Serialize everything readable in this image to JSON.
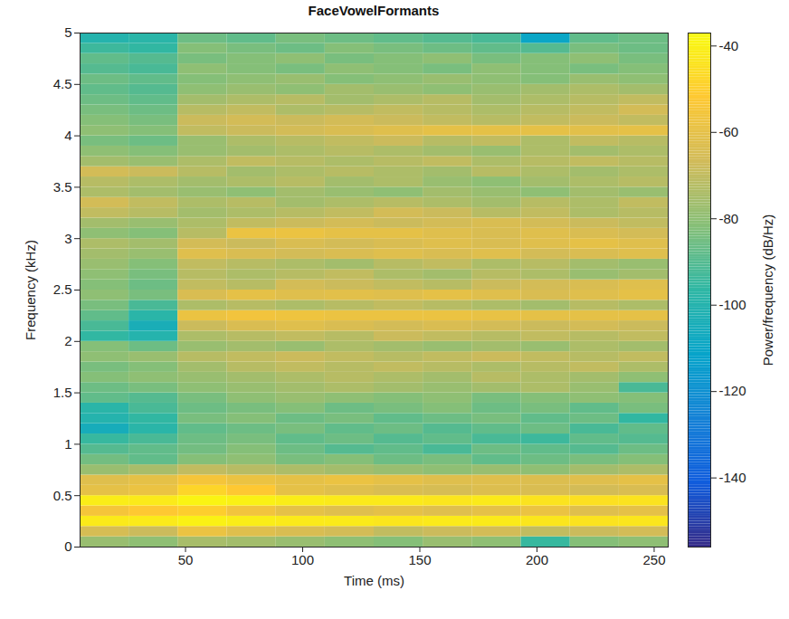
{
  "chart_data": {
    "type": "heatmap",
    "title": "FaceVowelFormants",
    "x_label": "Time (ms)",
    "y_label": "Frequency (kHz)",
    "xlim": [
      5,
      256
    ],
    "xticks": [
      50,
      100,
      150,
      200,
      250
    ],
    "ylim": [
      0,
      5
    ],
    "yticks": [
      0,
      0.5,
      1,
      1.5,
      2,
      2.5,
      3,
      3.5,
      4,
      4.5,
      5
    ],
    "x_edges": [
      5,
      25.9,
      46.8,
      67.8,
      88.7,
      109.6,
      130.5,
      151.4,
      172.3,
      193.3,
      214.2,
      235.1,
      256
    ],
    "y_edges": [
      0,
      0.1,
      0.2,
      0.3,
      0.4,
      0.5,
      0.6,
      0.7,
      0.8,
      0.9,
      1,
      1.1,
      1.2,
      1.3,
      1.4,
      1.5,
      1.6,
      1.7,
      1.8,
      1.9,
      2,
      2.1,
      2.2,
      2.3,
      2.4,
      2.5,
      2.6,
      2.7,
      2.8,
      2.9,
      3,
      3.1,
      3.2,
      3.3,
      3.4,
      3.5,
      3.6,
      3.7,
      3.8,
      3.9,
      4,
      4.1,
      4.2,
      4.3,
      4.4,
      4.5,
      4.6,
      4.7,
      4.8,
      4.9,
      5
    ],
    "z": [
      [
        -78,
        -80,
        -75,
        -76,
        -78,
        -80,
        -82,
        -78,
        -80,
        -95,
        -82,
        -80
      ],
      [
        -65,
        -68,
        -58,
        -62,
        -64,
        -66,
        -70,
        -68,
        -66,
        -70,
        -68,
        -66
      ],
      [
        -42,
        -42,
        -40,
        -41,
        -42,
        -42,
        -43,
        -42,
        -42,
        -43,
        -44,
        -43
      ],
      [
        -55,
        -52,
        -50,
        -56,
        -60,
        -62,
        -60,
        -62,
        -60,
        -58,
        -62,
        -60
      ],
      [
        -41,
        -42,
        -39,
        -40,
        -41,
        -42,
        -42,
        -43,
        -42,
        -44,
        -45,
        -44
      ],
      [
        -60,
        -58,
        -48,
        -52,
        -60,
        -62,
        -64,
        -65,
        -63,
        -64,
        -66,
        -64
      ],
      [
        -62,
        -60,
        -55,
        -58,
        -60,
        -58,
        -60,
        -62,
        -62,
        -63,
        -62,
        -60
      ],
      [
        -78,
        -75,
        -70,
        -72,
        -74,
        -76,
        -78,
        -80,
        -78,
        -80,
        -76,
        -74
      ],
      [
        -85,
        -88,
        -82,
        -80,
        -84,
        -82,
        -86,
        -84,
        -88,
        -86,
        -84,
        -82
      ],
      [
        -90,
        -88,
        -85,
        -82,
        -86,
        -90,
        -88,
        -92,
        -86,
        -88,
        -90,
        -86
      ],
      [
        -95,
        -92,
        -86,
        -84,
        -88,
        -86,
        -90,
        -88,
        -92,
        -94,
        -88,
        -90
      ],
      [
        -105,
        -98,
        -88,
        -86,
        -84,
        -88,
        -86,
        -90,
        -88,
        -86,
        -92,
        -88
      ],
      [
        -100,
        -96,
        -84,
        -82,
        -86,
        -84,
        -88,
        -86,
        -84,
        -88,
        -86,
        -96
      ],
      [
        -98,
        -92,
        -86,
        -84,
        -82,
        -86,
        -84,
        -82,
        -86,
        -84,
        -88,
        -84
      ],
      [
        -88,
        -90,
        -84,
        -80,
        -78,
        -80,
        -82,
        -80,
        -84,
        -82,
        -80,
        -82
      ],
      [
        -86,
        -84,
        -80,
        -78,
        -76,
        -74,
        -76,
        -78,
        -76,
        -74,
        -78,
        -92
      ],
      [
        -82,
        -80,
        -78,
        -76,
        -74,
        -72,
        -74,
        -76,
        -72,
        -74,
        -76,
        -80
      ],
      [
        -84,
        -82,
        -76,
        -72,
        -70,
        -72,
        -70,
        -72,
        -74,
        -72,
        -70,
        -74
      ],
      [
        -80,
        -78,
        -72,
        -70,
        -68,
        -70,
        -72,
        -70,
        -68,
        -70,
        -72,
        -70
      ],
      [
        -82,
        -86,
        -78,
        -76,
        -78,
        -74,
        -76,
        -78,
        -76,
        -78,
        -74,
        -76
      ],
      [
        -96,
        -100,
        -74,
        -72,
        -70,
        -72,
        -68,
        -70,
        -72,
        -70,
        -72,
        -70
      ],
      [
        -92,
        -104,
        -68,
        -64,
        -62,
        -64,
        -66,
        -64,
        -66,
        -68,
        -66,
        -68
      ],
      [
        -88,
        -98,
        -58,
        -56,
        -57,
        -58,
        -58,
        -58,
        -59,
        -60,
        -60,
        -60
      ],
      [
        -84,
        -92,
        -74,
        -72,
        -74,
        -72,
        -70,
        -72,
        -74,
        -76,
        -72,
        -74
      ],
      [
        -80,
        -84,
        -64,
        -60,
        -62,
        -61,
        -62,
        -60,
        -62,
        -64,
        -62,
        -60
      ],
      [
        -82,
        -86,
        -70,
        -72,
        -66,
        -68,
        -70,
        -72,
        -68,
        -66,
        -64,
        -62
      ],
      [
        -80,
        -84,
        -72,
        -74,
        -72,
        -70,
        -74,
        -76,
        -72,
        -74,
        -78,
        -76
      ],
      [
        -78,
        -82,
        -70,
        -72,
        -74,
        -76,
        -72,
        -70,
        -74,
        -72,
        -76,
        -78
      ],
      [
        -76,
        -78,
        -62,
        -64,
        -66,
        -64,
        -62,
        -64,
        -62,
        -66,
        -64,
        -62
      ],
      [
        -74,
        -76,
        -66,
        -68,
        -64,
        -66,
        -64,
        -62,
        -64,
        -62,
        -60,
        -62
      ],
      [
        -80,
        -82,
        -72,
        -58,
        -58,
        -60,
        -60,
        -62,
        -64,
        -62,
        -64,
        -66
      ],
      [
        -76,
        -78,
        -74,
        -70,
        -68,
        -66,
        -68,
        -66,
        -64,
        -66,
        -68,
        -70
      ],
      [
        -70,
        -72,
        -76,
        -74,
        -72,
        -70,
        -66,
        -68,
        -72,
        -70,
        -74,
        -72
      ],
      [
        -66,
        -70,
        -74,
        -72,
        -76,
        -74,
        -72,
        -74,
        -76,
        -72,
        -74,
        -70
      ],
      [
        -74,
        -76,
        -78,
        -80,
        -76,
        -78,
        -80,
        -76,
        -78,
        -80,
        -76,
        -78
      ],
      [
        -72,
        -74,
        -76,
        -74,
        -72,
        -76,
        -74,
        -78,
        -80,
        -76,
        -74,
        -72
      ],
      [
        -66,
        -68,
        -72,
        -76,
        -74,
        -72,
        -74,
        -76,
        -72,
        -74,
        -76,
        -74
      ],
      [
        -76,
        -78,
        -74,
        -70,
        -72,
        -74,
        -72,
        -70,
        -74,
        -72,
        -70,
        -72
      ],
      [
        -80,
        -82,
        -78,
        -76,
        -74,
        -72,
        -74,
        -76,
        -78,
        -74,
        -76,
        -74
      ],
      [
        -84,
        -86,
        -78,
        -74,
        -72,
        -70,
        -68,
        -72,
        -70,
        -74,
        -70,
        -72
      ],
      [
        -80,
        -82,
        -70,
        -68,
        -66,
        -64,
        -62,
        -60,
        -60,
        -60,
        -61,
        -60
      ],
      [
        -82,
        -84,
        -68,
        -66,
        -68,
        -66,
        -68,
        -70,
        -72,
        -70,
        -68,
        -70
      ],
      [
        -84,
        -86,
        -72,
        -70,
        -74,
        -72,
        -70,
        -72,
        -74,
        -72,
        -70,
        -66
      ],
      [
        -86,
        -88,
        -76,
        -74,
        -72,
        -76,
        -74,
        -72,
        -76,
        -74,
        -72,
        -70
      ],
      [
        -88,
        -90,
        -80,
        -78,
        -80,
        -76,
        -78,
        -80,
        -78,
        -76,
        -74,
        -76
      ],
      [
        -86,
        -88,
        -82,
        -80,
        -78,
        -82,
        -80,
        -78,
        -80,
        -82,
        -78,
        -80
      ],
      [
        -90,
        -92,
        -80,
        -82,
        -84,
        -80,
        -82,
        -84,
        -80,
        -82,
        -84,
        -82
      ],
      [
        -88,
        -90,
        -84,
        -82,
        -80,
        -84,
        -82,
        -80,
        -84,
        -82,
        -80,
        -84
      ],
      [
        -94,
        -96,
        -82,
        -84,
        -86,
        -82,
        -84,
        -86,
        -88,
        -90,
        -84,
        -86
      ],
      [
        -100,
        -98,
        -86,
        -88,
        -84,
        -86,
        -88,
        -90,
        -92,
        -110,
        -88,
        -86
      ]
    ],
    "colorbar": {
      "label": "Power/frequency (dB/Hz)",
      "clim": [
        -156,
        -37
      ],
      "ticks": [
        -140,
        -120,
        -100,
        -80,
        -60,
        -40
      ]
    }
  }
}
